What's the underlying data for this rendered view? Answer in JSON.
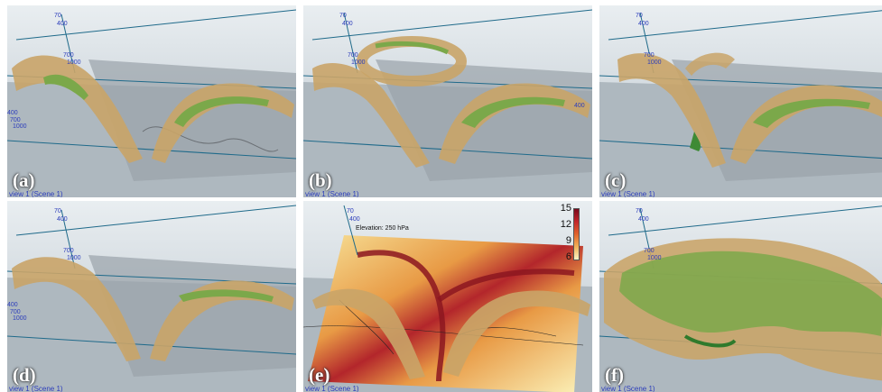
{
  "panels": [
    {
      "label": "(a)",
      "view": "view 1 (Scene 1)",
      "axis": {
        "top": [
          "70",
          "400"
        ],
        "mid": [
          "700",
          "1000"
        ],
        "left": [
          "400",
          "700",
          "1000"
        ]
      }
    },
    {
      "label": "(b)",
      "view": "view 1 (Scene 1)",
      "axis": {
        "top": [
          "70",
          "400"
        ],
        "mid": [
          "700",
          "1000"
        ],
        "left": [
          "400"
        ]
      }
    },
    {
      "label": "(c)",
      "view": "view 1 (Scene 1)",
      "axis": {
        "top": [
          "70",
          "400"
        ],
        "mid": [
          "700",
          "1000"
        ],
        "left": []
      }
    },
    {
      "label": "(d)",
      "view": "view 1 (Scene 1)",
      "axis": {
        "top": [
          "70",
          "400"
        ],
        "mid": [
          "700",
          "1000"
        ],
        "left": [
          "400",
          "700",
          "1000"
        ]
      }
    },
    {
      "label": "(e)",
      "view": "view 1 (Scene 1)",
      "axis": {
        "top": [
          "70",
          "400"
        ],
        "mid": [],
        "left": []
      },
      "elevation": "Elevation: 250 hPa",
      "colorbar": [
        "15",
        "12",
        "9",
        "6"
      ]
    },
    {
      "label": "(f)",
      "view": "view 1 (Scene 1)",
      "axis": {
        "top": [
          "70",
          "400"
        ],
        "mid": [
          "700",
          "1000"
        ],
        "left": []
      }
    }
  ],
  "colors": {
    "isosurface_tan": "#c9a468",
    "isosurface_green": "#7ba84a",
    "axis_line": "#1f6a8a",
    "view_text": "#2c3dbb"
  }
}
